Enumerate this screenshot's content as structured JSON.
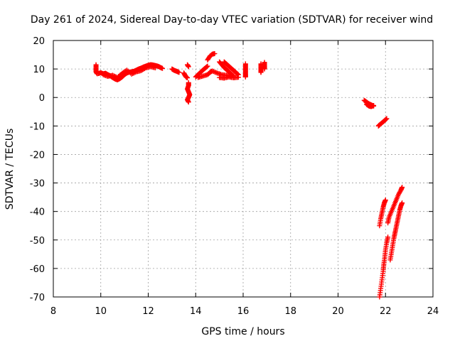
{
  "chart_data": {
    "type": "scatter",
    "title": "Day 261 of 2024, Sidereal Day-to-day VTEC variation (SDTVAR) for receiver wind",
    "xlabel": "GPS time / hours",
    "ylabel": "SDTVAR / TECUs",
    "xlim": [
      8,
      24
    ],
    "ylim": [
      -70,
      20
    ],
    "xticks": [
      "8",
      "10",
      "12",
      "14",
      "16",
      "18",
      "20",
      "22",
      "24"
    ],
    "yticks": [
      "20",
      "10",
      "0",
      "-10",
      "-20",
      "-30",
      "-40",
      "-50",
      "-60",
      "-70"
    ],
    "grid": true,
    "marker": "plus",
    "marker_color": "#ff0000",
    "series": [
      {
        "name": "SDTVAR",
        "segments": [
          {
            "points": [
              [
                9.8,
                11.5
              ],
              [
                9.8,
                10.2
              ],
              [
                9.8,
                9.0
              ],
              [
                9.85,
                8.3
              ]
            ]
          },
          {
            "points": [
              [
                9.9,
                8.4
              ],
              [
                10.0,
                8.7
              ],
              [
                10.1,
                8.3
              ],
              [
                10.2,
                8.5
              ],
              [
                10.3,
                8.0
              ],
              [
                10.4,
                7.6
              ],
              [
                10.5,
                7.0
              ],
              [
                10.6,
                6.5
              ],
              [
                10.7,
                6.2
              ],
              [
                10.8,
                6.6
              ],
              [
                10.9,
                7.2
              ],
              [
                11.0,
                8.0
              ],
              [
                11.1,
                8.6
              ],
              [
                11.2,
                8.9
              ],
              [
                11.3,
                9.0
              ],
              [
                11.4,
                9.2
              ],
              [
                11.5,
                9.6
              ],
              [
                11.6,
                10.0
              ],
              [
                11.7,
                10.3
              ],
              [
                11.8,
                10.7
              ],
              [
                11.9,
                11.0
              ],
              [
                12.0,
                11.3
              ],
              [
                12.1,
                11.5
              ],
              [
                12.2,
                11.4
              ],
              [
                12.3,
                11.2
              ],
              [
                12.4,
                11.0
              ],
              [
                12.5,
                10.6
              ],
              [
                12.6,
                10.2
              ]
            ]
          },
          {
            "points": [
              [
                10.1,
                8.0
              ],
              [
                10.3,
                7.4
              ],
              [
                10.5,
                7.8
              ],
              [
                10.7,
                7.0
              ],
              [
                10.9,
                8.5
              ],
              [
                11.1,
                9.6
              ],
              [
                11.3,
                8.2
              ],
              [
                11.5,
                9.0
              ],
              [
                11.7,
                9.4
              ],
              [
                11.9,
                10.4
              ],
              [
                12.1,
                10.8
              ],
              [
                12.3,
                10.4
              ]
            ]
          },
          {
            "points": [
              [
                13.0,
                10.0
              ],
              [
                13.1,
                9.5
              ],
              [
                13.2,
                9.2
              ],
              [
                13.3,
                8.8
              ]
            ]
          },
          {
            "points": [
              [
                13.5,
                8.6
              ],
              [
                13.55,
                7.8
              ],
              [
                13.6,
                7.2
              ],
              [
                13.65,
                6.9
              ]
            ]
          },
          {
            "points": [
              [
                13.65,
                11.5
              ],
              [
                13.7,
                10.8
              ]
            ]
          },
          {
            "points": [
              [
                13.7,
                5.2
              ],
              [
                13.7,
                4.2
              ],
              [
                13.65,
                3.0
              ],
              [
                13.7,
                2.0
              ],
              [
                13.75,
                1.0
              ],
              [
                13.7,
                0.0
              ],
              [
                13.65,
                -0.8
              ],
              [
                13.7,
                -1.6
              ]
            ]
          },
          {
            "points": [
              [
                14.0,
                7.2
              ],
              [
                14.1,
                8.0
              ],
              [
                14.2,
                8.8
              ],
              [
                14.3,
                9.6
              ],
              [
                14.4,
                10.3
              ],
              [
                14.5,
                11.0
              ]
            ]
          },
          {
            "points": [
              [
                14.1,
                7.0
              ],
              [
                14.3,
                7.5
              ],
              [
                14.5,
                8.0
              ],
              [
                14.6,
                8.8
              ],
              [
                14.7,
                9.3
              ],
              [
                14.9,
                8.6
              ],
              [
                15.1,
                8.0
              ],
              [
                15.3,
                7.8
              ],
              [
                15.5,
                7.5
              ]
            ]
          },
          {
            "points": [
              [
                14.5,
                13.2
              ],
              [
                14.6,
                14.5
              ],
              [
                14.7,
                15.2
              ],
              [
                14.8,
                15.4
              ]
            ]
          },
          {
            "points": [
              [
                15.0,
                12.5
              ],
              [
                15.1,
                11.5
              ],
              [
                15.2,
                10.5
              ],
              [
                15.3,
                9.8
              ],
              [
                15.4,
                9.0
              ],
              [
                15.5,
                8.2
              ],
              [
                15.6,
                7.5
              ]
            ]
          },
          {
            "points": [
              [
                15.2,
                12.5
              ],
              [
                15.3,
                11.7
              ],
              [
                15.4,
                11.0
              ],
              [
                15.5,
                10.2
              ],
              [
                15.6,
                9.5
              ],
              [
                15.7,
                8.7
              ],
              [
                15.8,
                8.0
              ]
            ]
          },
          {
            "points": [
              [
                15.0,
                7.0
              ],
              [
                15.2,
                6.8
              ],
              [
                15.4,
                7.2
              ],
              [
                15.6,
                6.9
              ],
              [
                15.8,
                7.1
              ]
            ]
          },
          {
            "points": [
              [
                16.1,
                11.8
              ],
              [
                16.1,
                10.5
              ],
              [
                16.1,
                9.3
              ],
              [
                16.1,
                8.1
              ],
              [
                16.1,
                7.2
              ]
            ]
          },
          {
            "points": [
              [
                16.75,
                11.8
              ],
              [
                16.75,
                10.5
              ],
              [
                16.75,
                9.5
              ],
              [
                16.75,
                8.8
              ]
            ]
          },
          {
            "points": [
              [
                16.9,
                12.3
              ],
              [
                16.9,
                11.0
              ],
              [
                16.9,
                10.0
              ]
            ]
          },
          {
            "points": [
              [
                21.1,
                -1.0
              ],
              [
                21.2,
                -1.6
              ],
              [
                21.3,
                -2.2
              ],
              [
                21.4,
                -2.6
              ],
              [
                21.5,
                -3.0
              ]
            ]
          },
          {
            "points": [
              [
                21.2,
                -2.4
              ],
              [
                21.3,
                -3.0
              ],
              [
                21.4,
                -3.2
              ],
              [
                21.5,
                -2.8
              ]
            ]
          },
          {
            "points": [
              [
                21.7,
                -10.0
              ],
              [
                21.75,
                -9.6
              ],
              [
                21.85,
                -8.9
              ],
              [
                21.95,
                -8.2
              ],
              [
                22.05,
                -7.4
              ]
            ]
          },
          {
            "points": [
              [
                21.75,
                -45.0
              ],
              [
                21.8,
                -42.5
              ],
              [
                21.85,
                -40.5
              ],
              [
                21.9,
                -38.5
              ],
              [
                21.95,
                -37.0
              ],
              [
                22.0,
                -36.0
              ]
            ]
          },
          {
            "points": [
              [
                21.75,
                -70.0
              ],
              [
                21.8,
                -67.0
              ],
              [
                21.85,
                -64.0
              ],
              [
                21.9,
                -61.0
              ],
              [
                21.93,
                -58.5
              ],
              [
                21.97,
                -56.0
              ],
              [
                22.0,
                -53.5
              ],
              [
                22.05,
                -51.0
              ],
              [
                22.1,
                -49.0
              ]
            ]
          },
          {
            "points": [
              [
                22.1,
                -44.0
              ],
              [
                22.15,
                -42.0
              ],
              [
                22.25,
                -40.0
              ],
              [
                22.35,
                -38.0
              ],
              [
                22.45,
                -36.0
              ],
              [
                22.55,
                -34.0
              ],
              [
                22.65,
                -32.5
              ],
              [
                22.7,
                -31.5
              ]
            ]
          },
          {
            "points": [
              [
                22.2,
                -57.0
              ],
              [
                22.25,
                -54.5
              ],
              [
                22.3,
                -52.0
              ],
              [
                22.35,
                -49.5
              ],
              [
                22.4,
                -47.5
              ],
              [
                22.45,
                -45.5
              ],
              [
                22.5,
                -43.5
              ],
              [
                22.55,
                -41.5
              ],
              [
                22.6,
                -39.5
              ],
              [
                22.65,
                -38.0
              ],
              [
                22.7,
                -37.0
              ]
            ]
          }
        ]
      }
    ]
  }
}
